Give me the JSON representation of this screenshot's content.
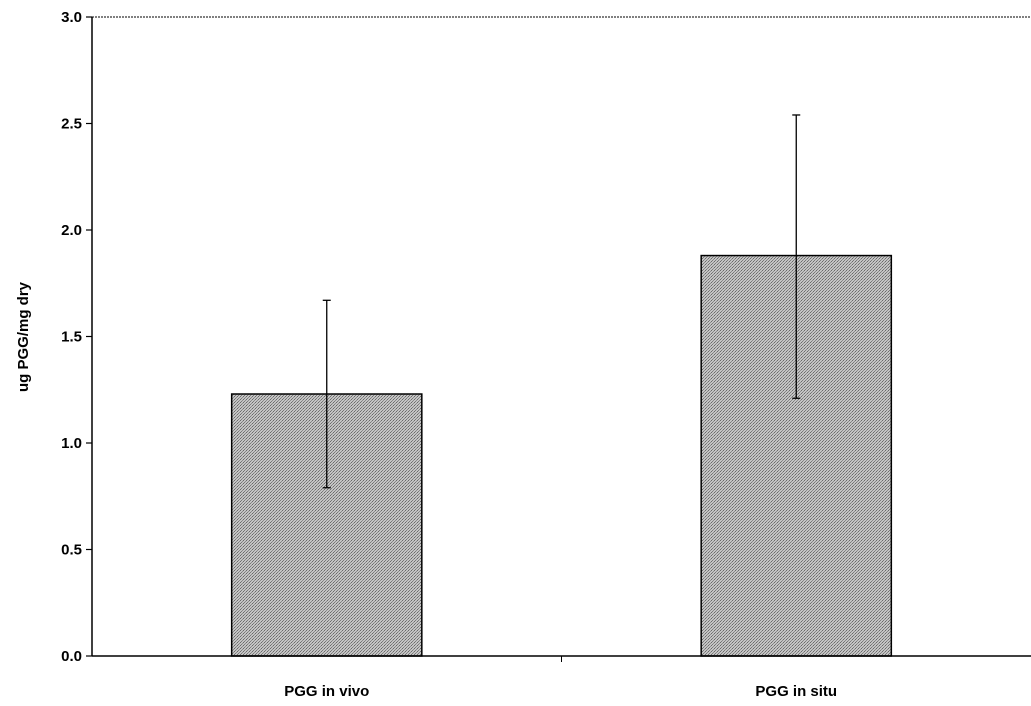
{
  "chart_data": {
    "type": "bar",
    "title": "",
    "xlabel": "",
    "ylabel": "ug PGG/mg dry",
    "categories": [
      "PGG in vivo",
      "PGG in situ"
    ],
    "values": [
      1.23,
      1.88
    ],
    "error_plus": [
      0.44,
      0.66
    ],
    "error_minus": [
      0.44,
      0.67
    ],
    "ylim": [
      0,
      3.0
    ],
    "yticks": [
      0.0,
      0.5,
      1.0,
      1.5,
      2.0,
      2.5,
      3.0
    ],
    "ytick_labels": [
      "0.0",
      "0.5",
      "1.0",
      "1.5",
      "2.0",
      "2.5",
      "3.0"
    ],
    "grid": false,
    "legend": "none",
    "bar_pattern": "fine gray stipple"
  }
}
